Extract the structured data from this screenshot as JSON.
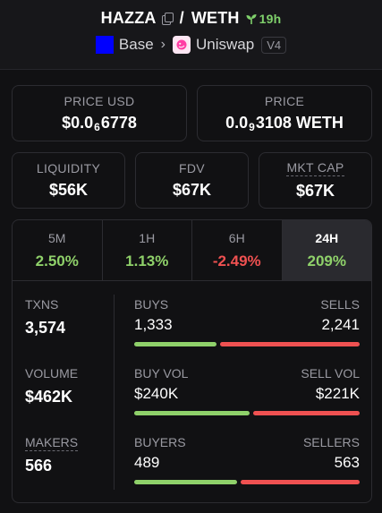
{
  "header": {
    "base_token": "HAZZA",
    "separator": "/",
    "quote_token": "WETH",
    "age": "19h",
    "chain": "Base",
    "dex": "Uniswap",
    "version": "V4"
  },
  "prices": {
    "usd_label": "PRICE USD",
    "usd_prefix": "$0.0",
    "usd_zeros": "6",
    "usd_digits": "6778",
    "native_label": "PRICE",
    "native_prefix": "0.0",
    "native_zeros": "9",
    "native_digits": "3108 WETH"
  },
  "metrics_top": {
    "liquidity_label": "LIQUIDITY",
    "liquidity_value": "$56K",
    "fdv_label": "FDV",
    "fdv_value": "$67K",
    "mcap_label": "MKT CAP",
    "mcap_value": "$67K"
  },
  "tabs": [
    {
      "label": "5M",
      "value": "2.50%",
      "active": false
    },
    {
      "label": "1H",
      "value": "1.13%",
      "active": false
    },
    {
      "label": "6H",
      "value": "-2.49%",
      "active": false
    },
    {
      "label": "24H",
      "value": "209%",
      "active": true
    }
  ],
  "left_stats": {
    "txns_label": "TXNS",
    "txns_value": "3,574",
    "volume_label": "VOLUME",
    "volume_value": "$462K",
    "makers_label": "MAKERS",
    "makers_value": "566"
  },
  "splits": {
    "buys_label": "BUYS",
    "buys_value": "1,333",
    "sells_label": "SELLS",
    "sells_value": "2,241",
    "buys_fraction": 0.373,
    "buyvol_label": "BUY VOL",
    "buyvol_value": "$240K",
    "sellvol_label": "SELL VOL",
    "sellvol_value": "$221K",
    "buyvol_fraction": 0.52,
    "buyers_label": "BUYERS",
    "buyers_value": "489",
    "sellers_label": "SELLERS",
    "sellers_value": "563",
    "buyers_fraction": 0.465
  },
  "colors": {
    "positive": "#8fd16a",
    "negative": "#ef5151",
    "chain": "#0000ff"
  }
}
